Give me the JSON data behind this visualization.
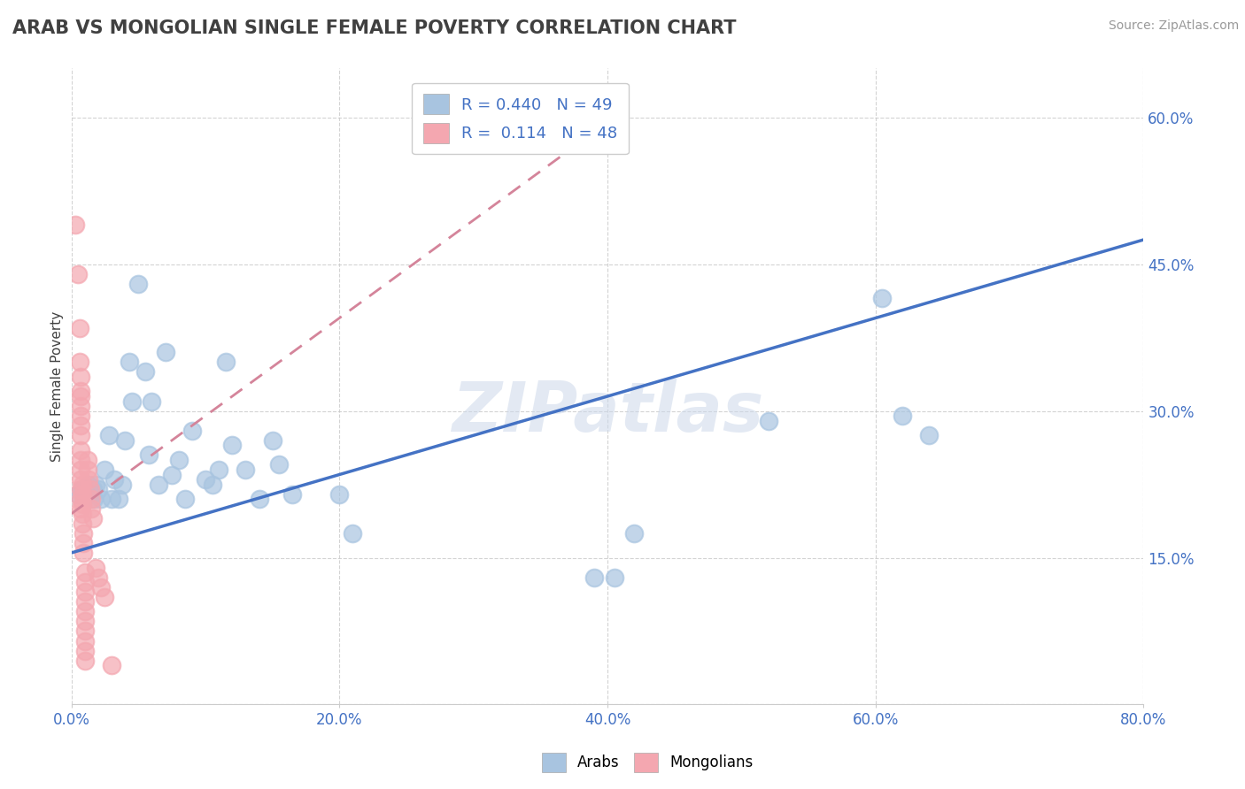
{
  "title": "ARAB VS MONGOLIAN SINGLE FEMALE POVERTY CORRELATION CHART",
  "source": "Source: ZipAtlas.com",
  "ylabel": "Single Female Poverty",
  "watermark": "ZIPatlas",
  "xlim": [
    0.0,
    0.8
  ],
  "ylim": [
    0.0,
    0.65
  ],
  "xticks": [
    0.0,
    0.2,
    0.4,
    0.6,
    0.8
  ],
  "xtick_labels": [
    "0.0%",
    "20.0%",
    "40.0%",
    "60.0%",
    "80.0%"
  ],
  "yticks": [
    0.0,
    0.15,
    0.3,
    0.45,
    0.6
  ],
  "ytick_labels": [
    "",
    "15.0%",
    "30.0%",
    "45.0%",
    "60.0%"
  ],
  "arab_R": 0.44,
  "arab_N": 49,
  "mongolian_R": 0.114,
  "mongolian_N": 48,
  "arab_color": "#a8c4e0",
  "mongolian_color": "#f4a7b0",
  "arab_line_color": "#4472c4",
  "mongolian_line_color": "#d4849a",
  "background_color": "#ffffff",
  "grid_color": "#c8c8c8",
  "title_color": "#404040",
  "axis_label_color": "#4472c4",
  "legend_R_color": "#4472c4",
  "arab_trend_x": [
    0.0,
    0.8
  ],
  "arab_trend_y": [
    0.155,
    0.475
  ],
  "mongolian_trend_x": [
    0.0,
    0.4
  ],
  "mongolian_trend_y": [
    0.195,
    0.595
  ],
  "arab_x": [
    0.005,
    0.008,
    0.01,
    0.012,
    0.013,
    0.015,
    0.016,
    0.017,
    0.018,
    0.02,
    0.022,
    0.025,
    0.028,
    0.03,
    0.032,
    0.035,
    0.038,
    0.04,
    0.043,
    0.045,
    0.05,
    0.055,
    0.058,
    0.06,
    0.065,
    0.07,
    0.075,
    0.08,
    0.085,
    0.09,
    0.1,
    0.105,
    0.11,
    0.115,
    0.12,
    0.13,
    0.14,
    0.15,
    0.155,
    0.165,
    0.2,
    0.21,
    0.39,
    0.405,
    0.42,
    0.52,
    0.605,
    0.62,
    0.64
  ],
  "arab_y": [
    0.215,
    0.22,
    0.215,
    0.22,
    0.225,
    0.215,
    0.22,
    0.21,
    0.225,
    0.22,
    0.21,
    0.24,
    0.275,
    0.21,
    0.23,
    0.21,
    0.225,
    0.27,
    0.35,
    0.31,
    0.43,
    0.34,
    0.255,
    0.31,
    0.225,
    0.36,
    0.235,
    0.25,
    0.21,
    0.28,
    0.23,
    0.225,
    0.24,
    0.35,
    0.265,
    0.24,
    0.21,
    0.27,
    0.245,
    0.215,
    0.215,
    0.175,
    0.13,
    0.13,
    0.175,
    0.29,
    0.415,
    0.295,
    0.275
  ],
  "mongolian_x": [
    0.003,
    0.005,
    0.006,
    0.006,
    0.007,
    0.007,
    0.007,
    0.007,
    0.007,
    0.007,
    0.007,
    0.007,
    0.007,
    0.007,
    0.007,
    0.007,
    0.007,
    0.007,
    0.008,
    0.008,
    0.008,
    0.008,
    0.008,
    0.009,
    0.009,
    0.009,
    0.01,
    0.01,
    0.01,
    0.01,
    0.01,
    0.01,
    0.01,
    0.01,
    0.01,
    0.01,
    0.012,
    0.012,
    0.013,
    0.014,
    0.015,
    0.015,
    0.016,
    0.018,
    0.02,
    0.022,
    0.025,
    0.03
  ],
  "mongolian_y": [
    0.49,
    0.44,
    0.385,
    0.35,
    0.335,
    0.32,
    0.315,
    0.305,
    0.295,
    0.285,
    0.275,
    0.26,
    0.25,
    0.24,
    0.23,
    0.22,
    0.21,
    0.2,
    0.225,
    0.215,
    0.205,
    0.195,
    0.185,
    0.175,
    0.165,
    0.155,
    0.135,
    0.125,
    0.115,
    0.105,
    0.095,
    0.085,
    0.075,
    0.065,
    0.055,
    0.045,
    0.25,
    0.24,
    0.23,
    0.22,
    0.21,
    0.2,
    0.19,
    0.14,
    0.13,
    0.12,
    0.11,
    0.04
  ]
}
